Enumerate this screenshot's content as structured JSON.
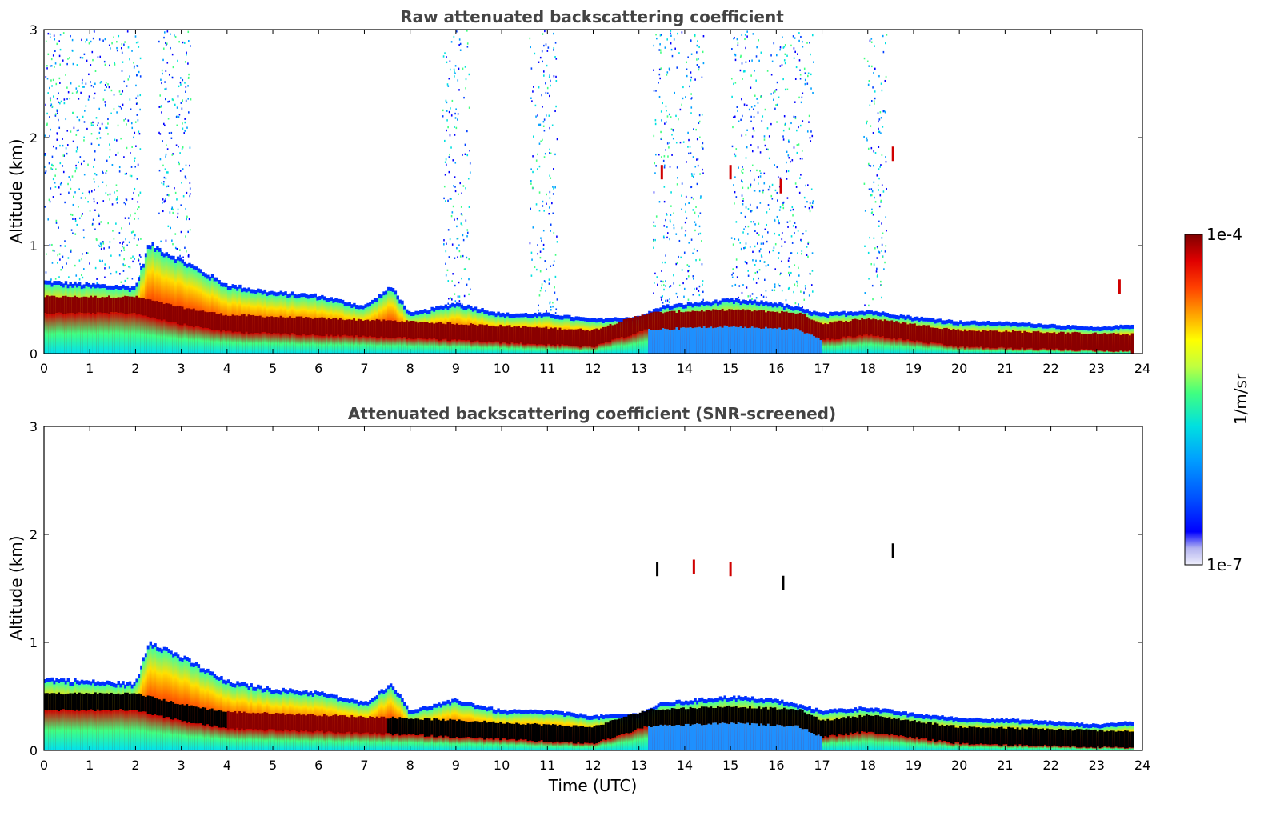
{
  "chart_data": [
    {
      "type": "heatmap",
      "title": "Raw attenuated backscattering coefficient",
      "xlabel": "",
      "ylabel": "Altitude (km)",
      "xlim": [
        0,
        24
      ],
      "ylim": [
        0,
        3
      ],
      "xticks": [
        "0",
        "1",
        "2",
        "3",
        "4",
        "5",
        "6",
        "7",
        "8",
        "9",
        "10",
        "11",
        "12",
        "13",
        "14",
        "15",
        "16",
        "17",
        "18",
        "19",
        "20",
        "21",
        "22",
        "23",
        "24"
      ],
      "yticks": [
        "0",
        "1",
        "2",
        "3"
      ],
      "layer_top_km": [
        [
          0,
          0.65
        ],
        [
          1,
          0.62
        ],
        [
          2,
          0.6
        ],
        [
          2.3,
          1.0
        ],
        [
          3,
          0.85
        ],
        [
          4,
          0.62
        ],
        [
          5,
          0.55
        ],
        [
          6,
          0.52
        ],
        [
          7,
          0.42
        ],
        [
          7.6,
          0.6
        ],
        [
          8,
          0.35
        ],
        [
          9,
          0.45
        ],
        [
          10,
          0.35
        ],
        [
          11,
          0.35
        ],
        [
          12,
          0.3
        ],
        [
          13,
          0.32
        ],
        [
          13.5,
          0.42
        ],
        [
          15,
          0.48
        ],
        [
          16,
          0.45
        ],
        [
          17,
          0.35
        ],
        [
          18,
          0.38
        ],
        [
          19,
          0.32
        ],
        [
          20,
          0.28
        ],
        [
          21,
          0.27
        ],
        [
          22,
          0.25
        ],
        [
          23,
          0.22
        ],
        [
          23.8,
          0.25
        ]
      ],
      "peak_band_km": [
        [
          0,
          0.45
        ],
        [
          2,
          0.45
        ],
        [
          3,
          0.35
        ],
        [
          4,
          0.28
        ],
        [
          6,
          0.25
        ],
        [
          8,
          0.22
        ],
        [
          10,
          0.18
        ],
        [
          12,
          0.14
        ],
        [
          13.2,
          0.3
        ],
        [
          15,
          0.33
        ],
        [
          16.5,
          0.3
        ],
        [
          17,
          0.2
        ],
        [
          18,
          0.25
        ],
        [
          20,
          0.14
        ],
        [
          23.8,
          0.1
        ]
      ],
      "noise_columns_utc": [
        [
          0,
          2.1
        ],
        [
          2.5,
          3.2
        ],
        [
          8.7,
          9.3
        ],
        [
          10.6,
          11.2
        ],
        [
          13.3,
          14.4
        ],
        [
          15,
          16.8
        ],
        [
          17.9,
          18.4
        ]
      ],
      "features": [
        {
          "time": 18.55,
          "altitude_km": 1.85,
          "value": "high"
        },
        {
          "time": 13.5,
          "altitude_km": 1.68,
          "value": "high"
        },
        {
          "time": 15.0,
          "altitude_km": 1.68,
          "value": "high"
        },
        {
          "time": 16.1,
          "altitude_km": 1.55,
          "value": "high"
        },
        {
          "time": 23.5,
          "altitude_km": 0.62,
          "value": "high"
        }
      ]
    },
    {
      "type": "heatmap",
      "title": "Attenuated backscattering coefficient (SNR-screened)",
      "xlabel": "Time (UTC)",
      "ylabel": "Altitude (km)",
      "xlim": [
        0,
        24
      ],
      "ylim": [
        0,
        3
      ],
      "xticks": [
        "0",
        "1",
        "2",
        "3",
        "4",
        "5",
        "6",
        "7",
        "8",
        "9",
        "10",
        "11",
        "12",
        "13",
        "14",
        "15",
        "16",
        "17",
        "18",
        "19",
        "20",
        "21",
        "22",
        "23",
        "24"
      ],
      "yticks": [
        "0",
        "1",
        "2",
        "3"
      ],
      "saturated_color": "#000000",
      "features": [
        {
          "time": 18.55,
          "altitude_km": 1.85,
          "value": "saturated"
        },
        {
          "time": 13.4,
          "altitude_km": 1.68,
          "value": "saturated"
        },
        {
          "time": 16.15,
          "altitude_km": 1.55,
          "value": "saturated"
        },
        {
          "time": 14.2,
          "altitude_km": 1.7,
          "value": "high"
        },
        {
          "time": 15.0,
          "altitude_km": 1.68,
          "value": "high"
        }
      ]
    }
  ],
  "colorbar": {
    "max_label": "1e-4",
    "min_label": "1e-7",
    "unit_label": "1/m/sr",
    "colors": [
      "#eeeefb",
      "#b4b4f0",
      "#0000ff",
      "#0050ff",
      "#00a0ff",
      "#00e0e0",
      "#40ff80",
      "#c0ff40",
      "#ffff00",
      "#ffa000",
      "#ff4000",
      "#e00000",
      "#800000"
    ]
  }
}
